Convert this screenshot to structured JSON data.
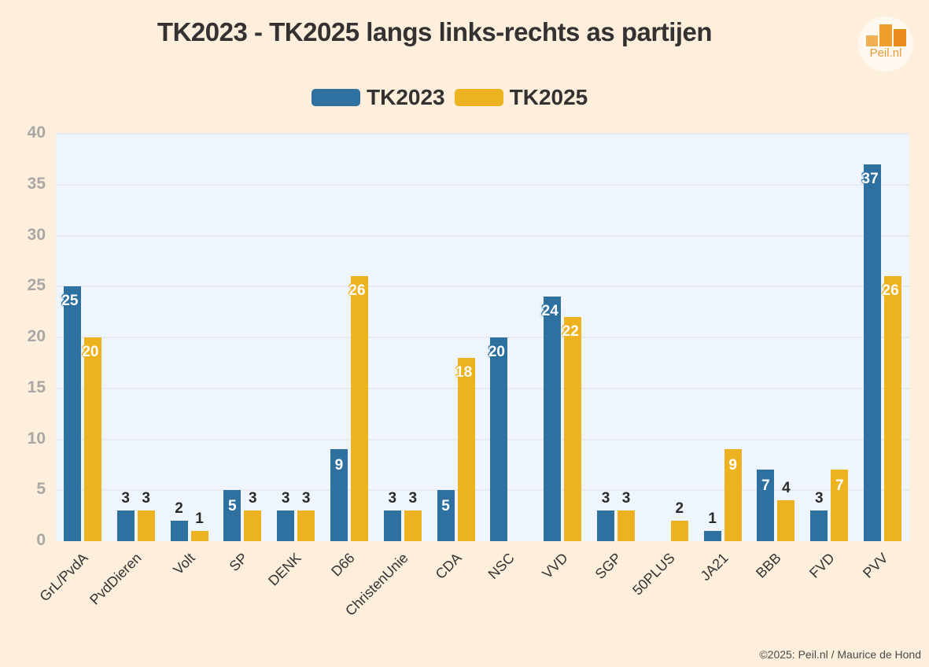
{
  "header": {
    "title": "TK2023 - TK2025 langs links-rechts as partijen"
  },
  "logo": {
    "text": "Peil.nl"
  },
  "legend": [
    {
      "label": "TK2023",
      "color": "#2e71a0"
    },
    {
      "label": "TK2025",
      "color": "#edb21f"
    }
  ],
  "yaxis": {
    "ticks": [
      "40",
      "35",
      "30",
      "25",
      "20",
      "15",
      "10",
      "5",
      "0"
    ]
  },
  "footer": {
    "credit": "©2025: Peil.nl / Maurice de Hond"
  },
  "chart_data": {
    "type": "bar",
    "title": "TK2023 - TK2025 langs links-rechts as partijen",
    "xlabel": "",
    "ylabel": "",
    "ylim": [
      0,
      40
    ],
    "yticks": [
      0,
      5,
      10,
      15,
      20,
      25,
      30,
      35,
      40
    ],
    "grid": true,
    "legend_position": "top",
    "categories": [
      "GrL/PvdA",
      "PvdDieren",
      "Volt",
      "SP",
      "DENK",
      "D66",
      "ChristenUnie",
      "CDA",
      "NSC",
      "VVD",
      "SGP",
      "50PLUS",
      "JA21",
      "BBB",
      "FVD",
      "PVV"
    ],
    "series": [
      {
        "name": "TK2023",
        "color": "#2e71a0",
        "values": [
          25,
          3,
          2,
          5,
          3,
          9,
          3,
          5,
          20,
          24,
          3,
          0,
          1,
          7,
          3,
          37
        ]
      },
      {
        "name": "TK2025",
        "color": "#edb21f",
        "values": [
          20,
          3,
          1,
          3,
          3,
          26,
          3,
          18,
          0,
          22,
          3,
          2,
          9,
          4,
          7,
          26
        ]
      }
    ]
  }
}
